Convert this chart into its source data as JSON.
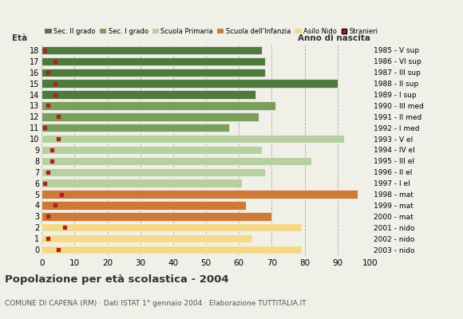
{
  "ages": [
    18,
    17,
    16,
    15,
    14,
    13,
    12,
    11,
    10,
    9,
    8,
    7,
    6,
    5,
    4,
    3,
    2,
    1,
    0
  ],
  "bar_values": [
    67,
    68,
    68,
    90,
    65,
    71,
    66,
    57,
    92,
    67,
    82,
    68,
    61,
    96,
    62,
    70,
    79,
    64,
    79
  ],
  "stranieri_values": [
    1,
    4,
    2,
    4,
    4,
    2,
    5,
    1,
    5,
    3,
    3,
    2,
    1,
    6,
    4,
    2,
    7,
    2,
    5
  ],
  "anno_nascita": [
    "1985 - V sup",
    "1986 - VI sup",
    "1987 - III sup",
    "1988 - II sup",
    "1989 - I sup",
    "1990 - III med",
    "1991 - II med",
    "1992 - I med",
    "1993 - V el",
    "1994 - IV el",
    "1995 - III el",
    "1996 - II el",
    "1997 - I el",
    "1998 - mat",
    "1999 - mat",
    "2000 - mat",
    "2001 - nido",
    "2002 - nido",
    "2003 - nido"
  ],
  "bar_colors": [
    "#4e7a3e",
    "#4e7a3e",
    "#4e7a3e",
    "#4e7a3e",
    "#4e7a3e",
    "#7a9e5c",
    "#7a9e5c",
    "#7a9e5c",
    "#b8cfa0",
    "#b8cfa0",
    "#b8cfa0",
    "#b8cfa0",
    "#b8cfa0",
    "#cc7a35",
    "#cc7a35",
    "#cc7a35",
    "#f5d98a",
    "#f5d98a",
    "#f5d98a"
  ],
  "legend_labels": [
    "Sec. II grado",
    "Sec. I grado",
    "Scuola Primaria",
    "Scuola dell'Infanzia",
    "Asilo Nido",
    "Stranieri"
  ],
  "legend_colors": [
    "#4e7a3e",
    "#7a9e5c",
    "#b8cfa0",
    "#cc7a35",
    "#f5d98a",
    "#aa2222"
  ],
  "title": "Popolazione per età scolastica - 2004",
  "subtitle": "COMUNE DI CAPENA (RM) · Dati ISTAT 1° gennaio 2004 · Elaborazione TUTTITALIA.IT",
  "label_eta": "Età",
  "label_anno": "Anno di nascita",
  "xlim": [
    0,
    100
  ],
  "xticks": [
    0,
    10,
    20,
    30,
    40,
    50,
    60,
    70,
    80,
    90,
    100
  ],
  "background_color": "#f0f0e8"
}
